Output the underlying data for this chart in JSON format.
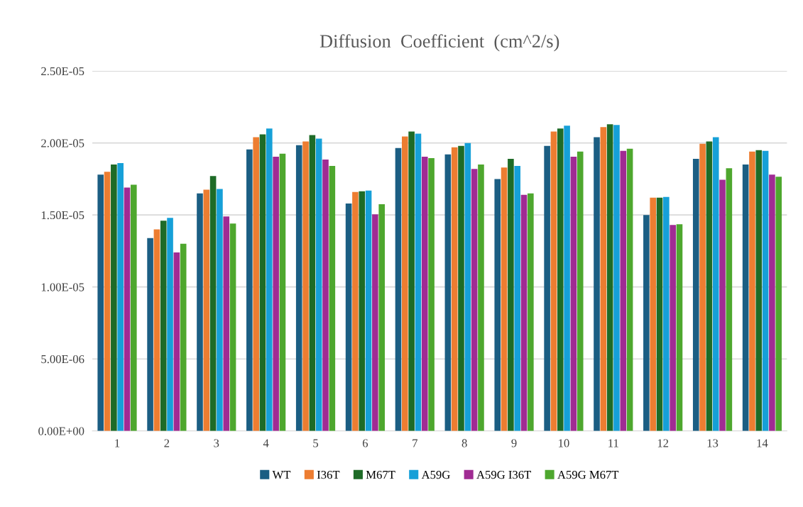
{
  "chart_data": {
    "type": "bar",
    "title": "Diffusion  Coefficient  (cm^2/s)",
    "categories": [
      "1",
      "2",
      "3",
      "4",
      "5",
      "6",
      "7",
      "8",
      "9",
      "10",
      "11",
      "12",
      "13",
      "14"
    ],
    "series": [
      {
        "name": "WT",
        "color": "#1b5e83",
        "values": [
          1.78e-05,
          1.34e-05,
          1.65e-05,
          1.955e-05,
          1.985e-05,
          1.58e-05,
          1.965e-05,
          1.92e-05,
          1.75e-05,
          1.98e-05,
          2.04e-05,
          1.5e-05,
          1.89e-05,
          1.85e-05
        ]
      },
      {
        "name": "I36T",
        "color": "#ed7d31",
        "values": [
          1.8e-05,
          1.4e-05,
          1.675e-05,
          2.04e-05,
          2.01e-05,
          1.66e-05,
          2.045e-05,
          1.97e-05,
          1.83e-05,
          2.08e-05,
          2.11e-05,
          1.62e-05,
          1.995e-05,
          1.94e-05
        ]
      },
      {
        "name": "M67T",
        "color": "#1e6b27",
        "values": [
          1.85e-05,
          1.46e-05,
          1.77e-05,
          2.06e-05,
          2.055e-05,
          1.665e-05,
          2.08e-05,
          1.98e-05,
          1.89e-05,
          2.1e-05,
          2.13e-05,
          1.62e-05,
          2.01e-05,
          1.95e-05
        ]
      },
      {
        "name": "A59G",
        "color": "#16a0d8",
        "values": [
          1.86e-05,
          1.48e-05,
          1.68e-05,
          2.1e-05,
          2.03e-05,
          1.67e-05,
          2.065e-05,
          2e-05,
          1.84e-05,
          2.12e-05,
          2.125e-05,
          1.625e-05,
          2.04e-05,
          1.945e-05
        ]
      },
      {
        "name": "A59G I36T",
        "color": "#a02b93",
        "values": [
          1.69e-05,
          1.24e-05,
          1.49e-05,
          1.905e-05,
          1.885e-05,
          1.505e-05,
          1.905e-05,
          1.82e-05,
          1.64e-05,
          1.905e-05,
          1.945e-05,
          1.43e-05,
          1.745e-05,
          1.78e-05
        ]
      },
      {
        "name": "A59G M67T",
        "color": "#4ea72e",
        "values": [
          1.71e-05,
          1.3e-05,
          1.44e-05,
          1.925e-05,
          1.84e-05,
          1.575e-05,
          1.895e-05,
          1.85e-05,
          1.65e-05,
          1.94e-05,
          1.96e-05,
          1.435e-05,
          1.825e-05,
          1.765e-05
        ]
      }
    ],
    "ylim": [
      0,
      2.5e-05
    ],
    "yticks": [
      {
        "value": 0,
        "label": "0.00E+00"
      },
      {
        "value": 5e-06,
        "label": "5.00E-06"
      },
      {
        "value": 1e-05,
        "label": "1.00E-05"
      },
      {
        "value": 1.5e-05,
        "label": "1.50E-05"
      },
      {
        "value": 2e-05,
        "label": "2.00E-05"
      },
      {
        "value": 2.5e-05,
        "label": "2.50E-05"
      }
    ],
    "grid": "y",
    "legend": "bottom"
  }
}
